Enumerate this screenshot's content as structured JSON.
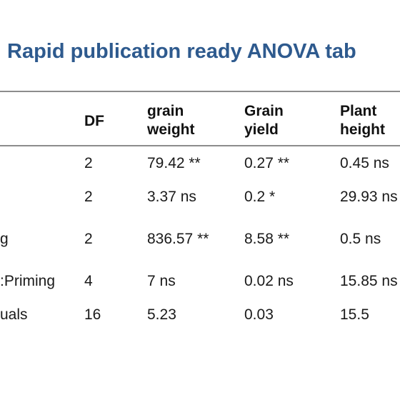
{
  "title": "Rapid publication ready ANOVA tab",
  "table": {
    "headers": {
      "df": "DF",
      "grain_weight": [
        "grain",
        "weight"
      ],
      "grain_yield": [
        "Grain",
        "yield"
      ],
      "plant_height": [
        "Plant",
        "height"
      ]
    },
    "rows": [
      {
        "source": "",
        "df": "2",
        "grain_weight": "79.42 **",
        "grain_yield": "0.27 **",
        "plant_height": "0.45 ns"
      },
      {
        "source": "",
        "df": "2",
        "grain_weight": "3.37 ns",
        "grain_yield": "0.2 *",
        "plant_height": "29.93 ns"
      },
      {
        "source": "g",
        "df": "2",
        "grain_weight": "836.57 **",
        "grain_yield": "8.58 **",
        "plant_height": "0.5 ns"
      },
      {
        "source": ":Priming",
        "df": "4",
        "grain_weight": "7 ns",
        "grain_yield": "0.02 ns",
        "plant_height": "15.85 ns"
      },
      {
        "source": "uals",
        "df": "16",
        "grain_weight": "5.23",
        "grain_yield": "0.03",
        "plant_height": "15.5"
      }
    ]
  }
}
